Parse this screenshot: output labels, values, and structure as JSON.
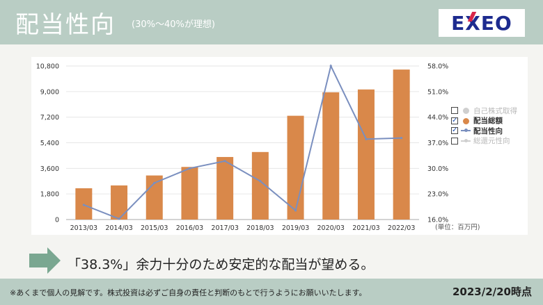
{
  "header": {
    "title": "配当性向",
    "subtitle": "(30%〜40%が理想)",
    "logo_text": "EXEO"
  },
  "message": "「38.3%」余力十分のため安定的な配当が望める。",
  "footer": {
    "disclaimer": "※あくまで個人の見解です。株式投資は必ずご自身の責任と判断のもとで行うようにお願いいたします。",
    "date": "2023/2/20時点"
  },
  "colors": {
    "bar": "#d9884a",
    "line": "#7a8fbf",
    "header": "#b9cdc4",
    "arrow": "#7aa791"
  },
  "legend": [
    {
      "label": "自己株式取得",
      "checked": false,
      "symbol": "dot",
      "color": "#cfcfcf",
      "style": "dim"
    },
    {
      "label": "配当総額",
      "checked": true,
      "symbol": "dot",
      "color": "#d9884a",
      "style": "bold"
    },
    {
      "label": "配当性向",
      "checked": true,
      "symbol": "line",
      "color": "#7a8fbf",
      "style": "bold"
    },
    {
      "label": "総還元性向",
      "checked": false,
      "symbol": "line",
      "color": "#cfcfcf",
      "style": "dim"
    }
  ],
  "chart_data": {
    "type": "bar",
    "categories": [
      "2013/03",
      "2014/03",
      "2015/03",
      "2016/03",
      "2017/03",
      "2018/03",
      "2019/03",
      "2020/03",
      "2021/03",
      "2022/03"
    ],
    "series": [
      {
        "name": "配当総額",
        "type": "bar",
        "axis": "left",
        "values": [
          2200,
          2400,
          3100,
          3700,
          4400,
          4750,
          7300,
          8950,
          9150,
          10550
        ]
      },
      {
        "name": "配当性向",
        "type": "line",
        "axis": "right",
        "values": [
          20.0,
          16.2,
          26.0,
          30.0,
          32.0,
          26.5,
          18.5,
          58.0,
          38.0,
          38.3
        ]
      }
    ],
    "y_left": {
      "ticks": [
        "0",
        "1,800",
        "3,600",
        "5,400",
        "7,200",
        "9,000",
        "10,800"
      ],
      "ylim": [
        0,
        10800
      ]
    },
    "y_right": {
      "ticks": [
        "16.0%",
        "23.0%",
        "30.0%",
        "37.0%",
        "44.0%",
        "51.0%",
        "58.0%"
      ],
      "ylim": [
        16,
        58
      ]
    },
    "unit_label": "(単位：百万円)",
    "grid": true,
    "legend_position": "right"
  }
}
